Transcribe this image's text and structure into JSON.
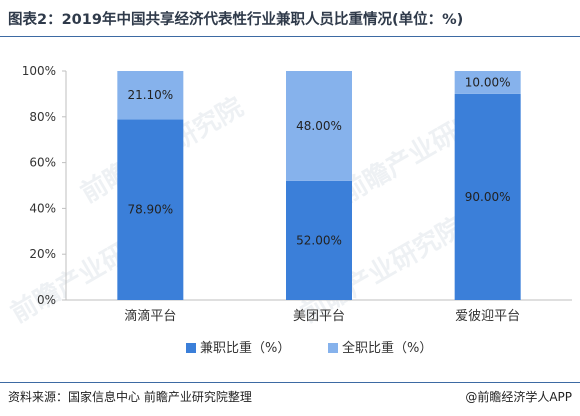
{
  "title": "图表2：2019年中国共享经济代表性行业兼职人员比重情况(单位：%)",
  "chart_data": {
    "type": "bar",
    "stacked": true,
    "categories": [
      "滴滴平台",
      "美团平台",
      "爱彼迎平台"
    ],
    "series": [
      {
        "name": "兼职比重（%）",
        "values": [
          78.9,
          52.0,
          90.0
        ],
        "labels": [
          "78.90%",
          "52.00%",
          "90.00%"
        ],
        "color": "#3b7fd9"
      },
      {
        "name": "全职比重（%）",
        "values": [
          21.1,
          48.0,
          10.0
        ],
        "labels": [
          "21.10%",
          "48.00%",
          "10.00%"
        ],
        "color": "#86b2ec"
      }
    ],
    "y_ticks": [
      "0%",
      "20%",
      "40%",
      "60%",
      "80%",
      "100%"
    ],
    "ylim": [
      0,
      100
    ],
    "grid": false,
    "legend_position": "bottom"
  },
  "watermark": "前瞻产业研究院",
  "footer": {
    "source": "资料来源：国家信息中心 前瞻产业研究院整理",
    "brand": "@前瞻经济学人APP"
  }
}
